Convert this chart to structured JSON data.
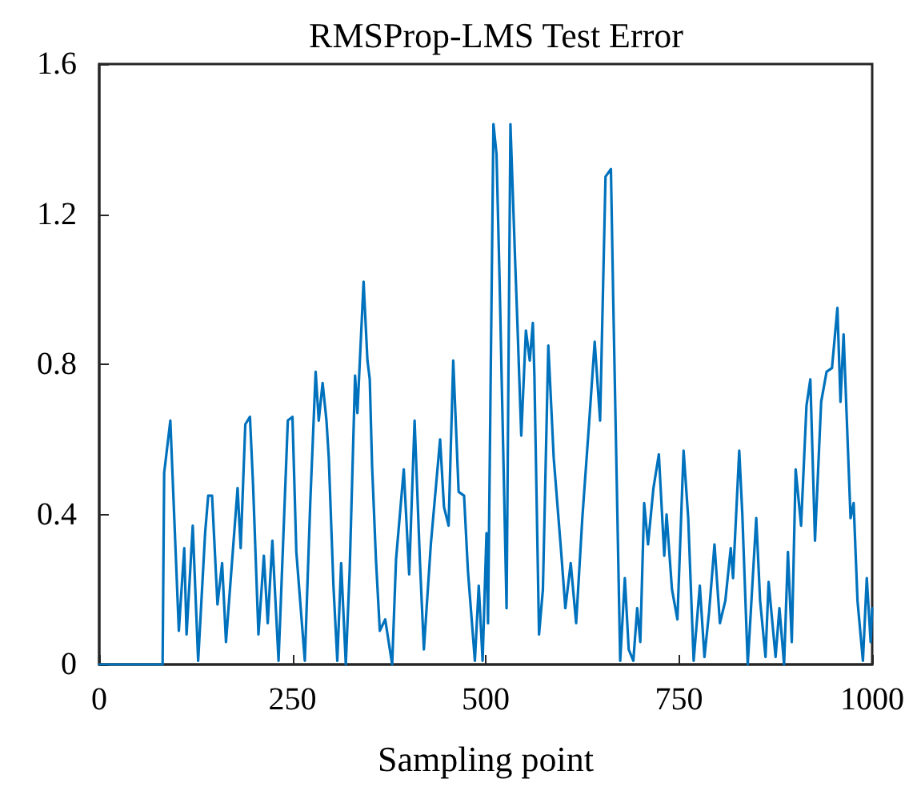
{
  "chart_data": {
    "type": "line",
    "title": "RMSProp-LMS Test Error",
    "xlabel": "Sampling point",
    "xlim": [
      0,
      1000
    ],
    "xticks": [
      0,
      250,
      500,
      750,
      1000
    ],
    "ylim": [
      0,
      1.6
    ],
    "yticks": [
      0,
      0.4,
      0.8,
      1.2,
      1.6
    ],
    "grid": false,
    "marker": "none",
    "line_style": "solid",
    "series": [
      {
        "color": "#0072bd",
        "x": [
          0,
          82,
          84,
          92,
          103,
          110,
          113,
          121,
          128,
          137,
          141,
          146,
          153,
          159,
          164,
          179,
          183,
          189,
          195,
          199,
          206,
          213,
          218,
          224,
          232,
          244,
          250,
          255,
          266,
          273,
          280,
          284,
          289,
          294,
          297,
          303,
          308,
          313,
          319,
          324,
          331,
          334,
          342,
          347,
          350,
          353,
          358,
          363,
          370,
          379,
          384,
          394,
          401,
          408,
          415,
          420,
          429,
          441,
          446,
          452,
          458,
          465,
          472,
          477,
          486,
          491,
          496,
          501,
          503,
          510,
          514,
          518,
          527,
          532,
          538,
          541,
          546,
          552,
          557,
          561,
          563,
          569,
          574,
          581,
          588,
          598,
          603,
          610,
          617,
          625,
          634,
          641,
          648,
          655,
          662,
          665,
          674,
          680,
          685,
          691,
          696,
          700,
          705,
          710,
          717,
          724,
          731,
          734,
          741,
          748,
          756,
          762,
          769,
          777,
          783,
          789,
          796,
          803,
          810,
          817,
          820,
          828,
          832,
          839,
          850,
          855,
          862,
          866,
          875,
          880,
          886,
          891,
          896,
          901,
          908,
          915,
          920,
          926,
          934,
          941,
          948,
          955,
          959,
          963,
          972,
          976,
          981,
          988,
          993,
          998,
          1000
        ],
        "values": [
          0,
          0,
          0.51,
          0.65,
          0.09,
          0.31,
          0.08,
          0.37,
          0.01,
          0.35,
          0.45,
          0.45,
          0.16,
          0.27,
          0.06,
          0.47,
          0.31,
          0.64,
          0.66,
          0.48,
          0.08,
          0.29,
          0.11,
          0.33,
          0.01,
          0.65,
          0.66,
          0.3,
          0.01,
          0.43,
          0.78,
          0.65,
          0.75,
          0.65,
          0.55,
          0.21,
          0.01,
          0.27,
          0,
          0.25,
          0.77,
          0.67,
          1.02,
          0.81,
          0.76,
          0.53,
          0.28,
          0.09,
          0.12,
          0,
          0.28,
          0.52,
          0.24,
          0.65,
          0.27,
          0.04,
          0.32,
          0.6,
          0.42,
          0.37,
          0.81,
          0.46,
          0.45,
          0.25,
          0.01,
          0.21,
          0.01,
          0.35,
          0.11,
          1.44,
          1.36,
          1.02,
          0.15,
          1.44,
          1.08,
          0.91,
          0.61,
          0.89,
          0.81,
          0.91,
          0.77,
          0.08,
          0.2,
          0.85,
          0.55,
          0.29,
          0.15,
          0.27,
          0.11,
          0.39,
          0.65,
          0.86,
          0.65,
          1.3,
          1.32,
          0.97,
          0.01,
          0.23,
          0.04,
          0.01,
          0.15,
          0.06,
          0.43,
          0.32,
          0.47,
          0.56,
          0.29,
          0.4,
          0.2,
          0.12,
          0.57,
          0.39,
          0.01,
          0.21,
          0.02,
          0.14,
          0.32,
          0.11,
          0.17,
          0.31,
          0.23,
          0.57,
          0.4,
          0,
          0.39,
          0.17,
          0.02,
          0.22,
          0.02,
          0.15,
          0,
          0.3,
          0.06,
          0.52,
          0.37,
          0.69,
          0.76,
          0.33,
          0.7,
          0.78,
          0.79,
          0.95,
          0.7,
          0.88,
          0.39,
          0.43,
          0.17,
          0.01,
          0.23,
          0.06,
          0.15
        ]
      }
    ]
  }
}
